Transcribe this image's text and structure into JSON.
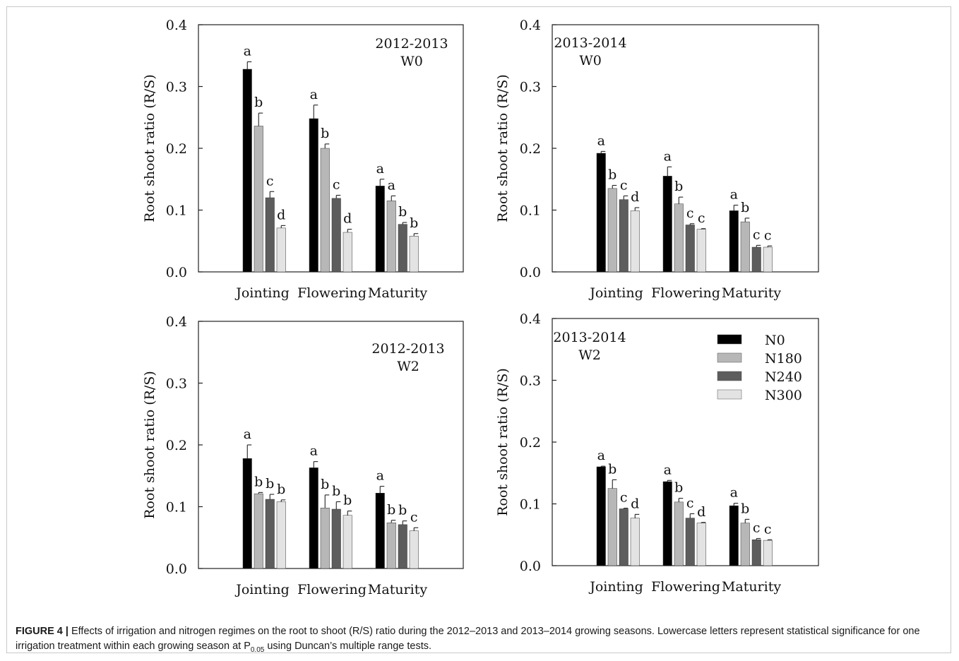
{
  "figure": {
    "caption_label": "FIGURE 4 |",
    "caption_text_1": " Effects of irrigation and nitrogen regimes on the root to shoot (R/S) ratio during the 2012–2013 and 2013–2014 growing seasons. Lowercase letters represent statistical significance for one irrigation treatment within each growing season at P",
    "caption_sub": "0.05",
    "caption_text_2": " using Duncan’s multiple range tests."
  },
  "legend": {
    "items": [
      {
        "name": "N0",
        "color": "#000000"
      },
      {
        "name": "N180",
        "color": "#b7b7b7"
      },
      {
        "name": "N240",
        "color": "#5d5d5d"
      },
      {
        "name": "N300",
        "color": "#e3e3e3"
      }
    ]
  },
  "chart_data": [
    {
      "type": "bar",
      "panel_label": [
        "2012-2013",
        "W0"
      ],
      "ylabel": "Root shoot ratio (R/S)",
      "ylim": [
        0,
        0.4
      ],
      "yticks": [
        "0.0",
        "0.1",
        "0.2",
        "0.3",
        "0.4"
      ],
      "categories": [
        "Jointing",
        "Flowering",
        "Maturity"
      ],
      "series": [
        {
          "name": "N0",
          "values": [
            0.328,
            0.248,
            0.139
          ],
          "errors": [
            0.012,
            0.022,
            0.011
          ],
          "letters": [
            "a",
            "a",
            "a"
          ]
        },
        {
          "name": "N180",
          "values": [
            0.236,
            0.2,
            0.115
          ],
          "errors": [
            0.021,
            0.007,
            0.008
          ],
          "letters": [
            "b",
            "b",
            "a"
          ]
        },
        {
          "name": "N240",
          "values": [
            0.12,
            0.119,
            0.077
          ],
          "errors": [
            0.01,
            0.005,
            0.003
          ],
          "letters": [
            "c",
            "c",
            "b"
          ]
        },
        {
          "name": "N300",
          "values": [
            0.071,
            0.064,
            0.058
          ],
          "errors": [
            0.004,
            0.005,
            0.004
          ],
          "letters": [
            "d",
            "d",
            "b"
          ]
        }
      ]
    },
    {
      "type": "bar",
      "panel_label": [
        "2013-2014",
        "W0"
      ],
      "ylabel": "Root shoot ratio (R/S)",
      "ylim": [
        0,
        0.4
      ],
      "yticks": [
        "0.0",
        "0.1",
        "0.2",
        "0.3",
        "0.4"
      ],
      "categories": [
        "Jointing",
        "Flowering",
        "Maturity"
      ],
      "series": [
        {
          "name": "N0",
          "values": [
            0.192,
            0.155,
            0.099
          ],
          "errors": [
            0.003,
            0.015,
            0.009
          ],
          "letters": [
            "a",
            "a",
            "a"
          ]
        },
        {
          "name": "N180",
          "values": [
            0.135,
            0.11,
            0.081
          ],
          "errors": [
            0.005,
            0.011,
            0.006
          ],
          "letters": [
            "b",
            "b",
            "b"
          ]
        },
        {
          "name": "N240",
          "values": [
            0.117,
            0.076,
            0.04
          ],
          "errors": [
            0.006,
            0.002,
            0.003
          ],
          "letters": [
            "c",
            "c",
            "c"
          ]
        },
        {
          "name": "N300",
          "values": [
            0.099,
            0.069,
            0.04
          ],
          "errors": [
            0.005,
            0.001,
            0.002
          ],
          "letters": [
            "d",
            "c",
            "c"
          ]
        }
      ]
    },
    {
      "type": "bar",
      "panel_label": [
        "2012-2013",
        "W2"
      ],
      "ylabel": "Root shoot ratio (R/S)",
      "ylim": [
        0,
        0.4
      ],
      "yticks": [
        "0.0",
        "0.1",
        "0.2",
        "0.3",
        "0.4"
      ],
      "categories": [
        "Jointing",
        "Flowering",
        "Maturity"
      ],
      "series": [
        {
          "name": "N0",
          "values": [
            0.178,
            0.163,
            0.122
          ],
          "errors": [
            0.022,
            0.01,
            0.011
          ],
          "letters": [
            "a",
            "a",
            "a"
          ]
        },
        {
          "name": "N180",
          "values": [
            0.121,
            0.098,
            0.074
          ],
          "errors": [
            0.002,
            0.021,
            0.004
          ],
          "letters": [
            "b",
            "b",
            "b"
          ]
        },
        {
          "name": "N240",
          "values": [
            0.112,
            0.096,
            0.071
          ],
          "errors": [
            0.008,
            0.012,
            0.006
          ],
          "letters": [
            "b",
            "b",
            "b"
          ]
        },
        {
          "name": "N300",
          "values": [
            0.108,
            0.086,
            0.061
          ],
          "errors": [
            0.003,
            0.007,
            0.005
          ],
          "letters": [
            "b",
            "b",
            "c"
          ]
        }
      ]
    },
    {
      "type": "bar",
      "panel_label": [
        "2013-2014",
        "W2"
      ],
      "ylabel": "Root shoot ratio (R/S)",
      "ylim": [
        0,
        0.4
      ],
      "yticks": [
        "0.0",
        "0.1",
        "0.2",
        "0.3",
        "0.4"
      ],
      "categories": [
        "Jointing",
        "Flowering",
        "Maturity"
      ],
      "series": [
        {
          "name": "N0",
          "values": [
            0.16,
            0.136,
            0.097
          ],
          "errors": [
            0.001,
            0.002,
            0.004
          ],
          "letters": [
            "a",
            "a",
            "a"
          ]
        },
        {
          "name": "N180",
          "values": [
            0.125,
            0.103,
            0.069
          ],
          "errors": [
            0.014,
            0.006,
            0.006
          ],
          "letters": [
            "b",
            "b",
            "b"
          ]
        },
        {
          "name": "N240",
          "values": [
            0.092,
            0.077,
            0.042
          ],
          "errors": [
            0.001,
            0.007,
            0.002
          ],
          "letters": [
            "c",
            "c",
            "c"
          ]
        },
        {
          "name": "N300",
          "values": [
            0.077,
            0.069,
            0.041
          ],
          "errors": [
            0.006,
            0.001,
            0.001
          ],
          "letters": [
            "d",
            "d",
            "c"
          ]
        }
      ]
    }
  ]
}
